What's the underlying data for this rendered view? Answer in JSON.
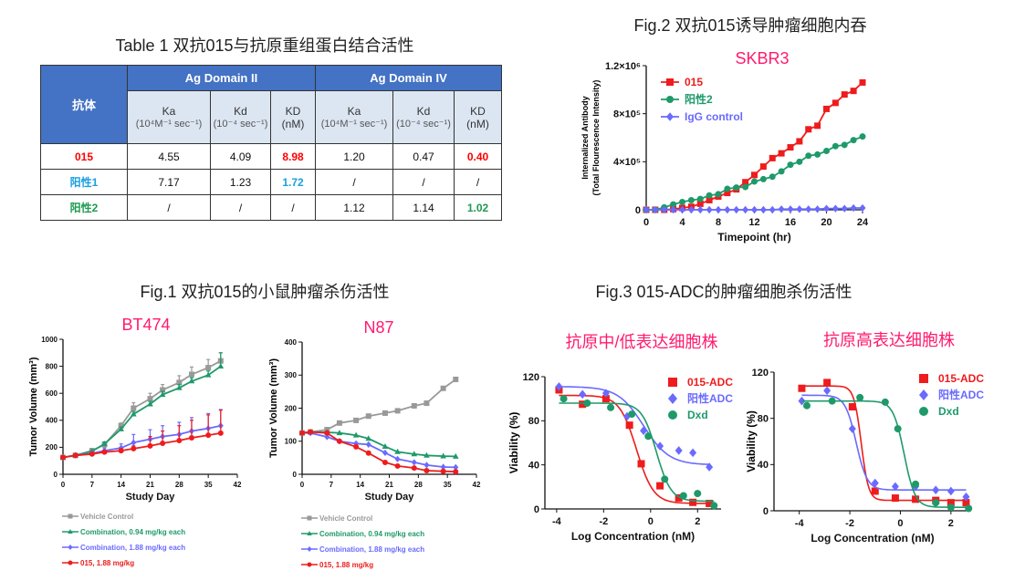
{
  "table1": {
    "title": "Table 1 双抗015与抗原重组蛋白结合活性",
    "header_antibody": "抗体",
    "domain2": "Ag Domain II",
    "domain4": "Ag Domain IV",
    "col_ka": "Ka",
    "col_ka_unit": "(10⁴M⁻¹ sec⁻¹)",
    "col_kd": "Kd",
    "col_kd_unit": "(10⁻⁴ sec⁻¹)",
    "col_KD": "KD",
    "col_KD_unit": "(nM)",
    "rows": [
      {
        "name": "015",
        "color": "#ff0000",
        "cells": [
          "4.55",
          "4.09",
          "8.98",
          "1.20",
          "0.47",
          "0.40"
        ]
      },
      {
        "name": "阳性1",
        "color": "#1a9fdf",
        "cells": [
          "7.17",
          "1.23",
          "1.72",
          "/",
          "/",
          "/"
        ]
      },
      {
        "name": "阳性2",
        "color": "#1e9a50",
        "cells": [
          "/",
          "/",
          "/",
          "1.12",
          "1.14",
          "1.02"
        ]
      }
    ]
  },
  "fig1": {
    "title": "Fig.1 双抗015的小鼠肿瘤杀伤活性"
  },
  "fig2": {
    "title": "Fig.2 双抗015诱导肿瘤细胞内吞"
  },
  "fig3": {
    "title": "Fig.3 015-ADC的肿瘤细胞杀伤活性"
  },
  "chart_data": [
    {
      "id": "skbr3",
      "type": "line",
      "title": "SKBR3",
      "xlabel": "Timepoint (hr)",
      "ylabel": "Internalized Antibody",
      "ylabel2": "(Total Flourescence Intensity)",
      "xlim": [
        0,
        24
      ],
      "ylim": [
        0,
        1200000
      ],
      "xticks": [
        0,
        4,
        8,
        12,
        16,
        20,
        24
      ],
      "xtick_labels": [
        "0",
        "4",
        "8",
        "12",
        "16",
        "20",
        "24"
      ],
      "yticks": [
        0,
        400000,
        800000,
        1200000
      ],
      "ytick_labels": [
        "0",
        "4×10⁵",
        "8×10⁵",
        "1.2×10⁶"
      ],
      "legend": "top-left",
      "grid": false,
      "x": [
        0,
        1,
        2,
        3,
        4,
        5,
        6,
        7,
        8,
        9,
        10,
        11,
        12,
        13,
        14,
        15,
        16,
        17,
        18,
        19,
        20,
        21,
        22,
        23,
        24
      ],
      "series": [
        {
          "name": "015",
          "color": "#ee1c1c",
          "marker": "square",
          "values": [
            0,
            0,
            0,
            5000,
            15000,
            25000,
            50000,
            80000,
            110000,
            140000,
            170000,
            230000,
            290000,
            360000,
            430000,
            470000,
            520000,
            570000,
            670000,
            700000,
            840000,
            890000,
            960000,
            990000,
            1060000
          ]
        },
        {
          "name": "阳性2",
          "color": "#1e9a6a",
          "marker": "circle",
          "values": [
            0,
            0,
            20000,
            45000,
            65000,
            80000,
            90000,
            120000,
            130000,
            175000,
            185000,
            190000,
            235000,
            255000,
            275000,
            320000,
            375000,
            400000,
            450000,
            460000,
            490000,
            530000,
            540000,
            580000,
            610000
          ]
        },
        {
          "name": "IgG control",
          "color": "#6a6aff",
          "marker": "diamond",
          "values": [
            0,
            0,
            0,
            0,
            0,
            0,
            0,
            0,
            0,
            0,
            0,
            0,
            0,
            0,
            0,
            5000,
            5000,
            5000,
            5000,
            5000,
            10000,
            10000,
            10000,
            15000,
            15000
          ]
        }
      ]
    },
    {
      "id": "bt474",
      "type": "line",
      "title": "BT474",
      "xlabel": "Study Day",
      "ylabel": "Tumor Volume (mm³)",
      "xlim": [
        0,
        42
      ],
      "ylim": [
        0,
        1000
      ],
      "xticks": [
        0,
        7,
        14,
        21,
        28,
        35,
        42
      ],
      "xtick_labels": [
        "0",
        "7",
        "14",
        "21",
        "28",
        "35",
        "42"
      ],
      "yticks": [
        0,
        200,
        400,
        600,
        800,
        1000
      ],
      "ytick_labels": [
        "0",
        "200",
        "400",
        "600",
        "800",
        "1000"
      ],
      "legend": "bottom",
      "grid": false,
      "x": [
        0,
        3,
        7,
        10,
        14,
        17,
        21,
        24,
        28,
        31,
        35,
        38
      ],
      "series": [
        {
          "name": "Vehicle Control",
          "color": "#999999",
          "marker": "square",
          "values": [
            125,
            140,
            175,
            220,
            360,
            490,
            560,
            625,
            680,
            740,
            790,
            840
          ],
          "err": [
            10,
            10,
            15,
            20,
            20,
            40,
            40,
            40,
            50,
            55,
            60,
            60
          ]
        },
        {
          "name": "Combination, 0.94 mg/kg each",
          "color": "#1e9a6a",
          "marker": "triangle",
          "values": [
            125,
            140,
            170,
            225,
            335,
            445,
            520,
            590,
            640,
            690,
            735,
            800
          ],
          "err": [
            10,
            10,
            10,
            15,
            15,
            20,
            20,
            25,
            25,
            25,
            30,
            100
          ]
        },
        {
          "name": "Combination, 1.88 mg/kg each",
          "color": "#6a6aff",
          "marker": "diamond",
          "values": [
            125,
            140,
            155,
            175,
            195,
            235,
            260,
            280,
            295,
            320,
            340,
            360
          ],
          "err": [
            10,
            10,
            10,
            20,
            30,
            60,
            70,
            80,
            90,
            100,
            110,
            120
          ]
        },
        {
          "name": "015, 1.88 mg/kg",
          "color": "#ee1c1c",
          "marker": "circle",
          "values": [
            125,
            140,
            150,
            165,
            175,
            190,
            210,
            230,
            250,
            270,
            290,
            305
          ],
          "err": [
            10,
            10,
            10,
            10,
            15,
            20,
            70,
            90,
            110,
            130,
            150,
            170
          ]
        }
      ]
    },
    {
      "id": "n87",
      "type": "line",
      "title": "N87",
      "xlabel": "Study Day",
      "ylabel": "Tumor Volume (mm³)",
      "xlim": [
        0,
        42
      ],
      "ylim": [
        0,
        400
      ],
      "xticks": [
        0,
        7,
        14,
        21,
        28,
        35,
        42
      ],
      "xtick_labels": [
        "0",
        "7",
        "14",
        "21",
        "28",
        "35",
        "42"
      ],
      "yticks": [
        0,
        100,
        200,
        300,
        400
      ],
      "ytick_labels": [
        "0",
        "100",
        "200",
        "300",
        "400"
      ],
      "legend": "bottom",
      "grid": false,
      "x": [
        0,
        2,
        6,
        9,
        13,
        16,
        20,
        23,
        27,
        30,
        34,
        37
      ],
      "series": [
        {
          "name": "Vehicle Control",
          "color": "#999999",
          "marker": "square",
          "values": [
            125,
            128,
            135,
            155,
            163,
            176,
            185,
            192,
            207,
            215,
            260,
            287
          ]
        },
        {
          "name": "Combination, 0.94 mg/kg each",
          "color": "#1e9a6a",
          "marker": "triangle",
          "values": [
            125,
            128,
            127,
            125,
            118,
            108,
            84,
            68,
            61,
            57,
            55,
            54
          ]
        },
        {
          "name": "Combination, 1.88 mg/kg each",
          "color": "#6a6aff",
          "marker": "diamond",
          "values": [
            125,
            125,
            113,
            100,
            93,
            90,
            65,
            46,
            36,
            28,
            22,
            21
          ]
        },
        {
          "name": "015, 1.88 mg/kg",
          "color": "#ee1c1c",
          "marker": "circle",
          "values": [
            125,
            128,
            125,
            100,
            83,
            64,
            36,
            25,
            19,
            11,
            9,
            8
          ]
        }
      ]
    },
    {
      "id": "via1",
      "type": "scatter",
      "title": "抗原中/低表达细胞株",
      "xlabel": "Log Concentration (nM)",
      "ylabel": "Viability (%)",
      "xlim": [
        -4.5,
        3
      ],
      "ylim": [
        0,
        120
      ],
      "xticks": [
        -4,
        -2,
        0,
        2
      ],
      "xtick_labels": [
        "-4",
        "-2",
        "0",
        "2"
      ],
      "yticks": [
        0,
        40,
        80,
        120
      ],
      "ytick_labels": [
        "0",
        "40",
        "80",
        "120"
      ],
      "legend": "top-right",
      "grid": false,
      "series": [
        {
          "name": "015-ADC",
          "color": "#ee1c1c",
          "marker": "square",
          "x": [
            -3.9,
            -2.9,
            -1.9,
            -0.9,
            -0.4,
            0.4,
            1.2,
            1.8,
            2.5
          ],
          "values": [
            108,
            95,
            100,
            76,
            41,
            21,
            10,
            6,
            5
          ],
          "fit": {
            "top": 103,
            "bottom": 5,
            "logIC50": -0.6,
            "hill": 1.2
          }
        },
        {
          "name": "阳性ADC",
          "color": "#6a6aff",
          "marker": "diamond",
          "x": [
            -3.9,
            -2.9,
            -1.9,
            -1.0,
            -0.3,
            0.4,
            1.2,
            1.8,
            2.5
          ],
          "values": [
            111,
            104,
            105,
            84,
            71,
            57,
            53,
            51,
            38
          ],
          "fit": {
            "top": 111,
            "bottom": 40,
            "logIC50": -0.3,
            "hill": 0.8
          }
        },
        {
          "name": "Dxd",
          "color": "#1e9a6a",
          "marker": "circle",
          "x": [
            -3.7,
            -2.7,
            -1.7,
            -0.8,
            -0.1,
            0.6,
            1.4,
            2.0,
            2.7
          ],
          "values": [
            100,
            96,
            92,
            86,
            66,
            27,
            12,
            14,
            3
          ],
          "fit": {
            "top": 96,
            "bottom": 7,
            "logIC50": 0.25,
            "hill": 1.4
          }
        }
      ]
    },
    {
      "id": "via2",
      "type": "scatter",
      "title": "抗原高表达细胞株",
      "xlabel": "Log Concentration (nM)",
      "ylabel": "Viability (%)",
      "xlim": [
        -5,
        2.8
      ],
      "ylim": [
        0,
        120
      ],
      "xticks": [
        -4,
        -2,
        0,
        2
      ],
      "xtick_labels": [
        "-4",
        "-2",
        "0",
        "2"
      ],
      "yticks": [
        0,
        40,
        80,
        120
      ],
      "ytick_labels": [
        "0",
        "40",
        "80",
        "120"
      ],
      "legend": "top-right",
      "grid": false,
      "series": [
        {
          "name": "015-ADC",
          "color": "#ee1c1c",
          "marker": "square",
          "x": [
            -3.9,
            -2.9,
            -1.9,
            -1.0,
            -0.2,
            0.6,
            1.4,
            2.0,
            2.6
          ],
          "values": [
            106,
            111,
            90,
            17,
            11,
            10,
            9,
            7,
            7
          ],
          "fit": {
            "top": 108,
            "bottom": 9,
            "logIC50": -1.55,
            "hill": 3
          }
        },
        {
          "name": "阳性ADC",
          "color": "#6a6aff",
          "marker": "diamond",
          "x": [
            -3.9,
            -2.9,
            -1.9,
            -1.0,
            -0.2,
            0.6,
            1.4,
            2.0,
            2.6
          ],
          "values": [
            95,
            104,
            71,
            24,
            21,
            21,
            18,
            17,
            12
          ],
          "fit": {
            "top": 100,
            "bottom": 18,
            "logIC50": -1.75,
            "hill": 2
          }
        },
        {
          "name": "Dxd",
          "color": "#1e9a6a",
          "marker": "circle",
          "x": [
            -3.7,
            -2.7,
            -1.6,
            -0.6,
            -0.1,
            0.6,
            1.4,
            2.0,
            2.7
          ],
          "values": [
            91,
            95,
            98,
            94,
            71,
            23,
            7,
            3,
            2
          ],
          "fit": {
            "top": 95,
            "bottom": 3,
            "logIC50": 0.15,
            "hill": 2
          }
        }
      ]
    }
  ]
}
